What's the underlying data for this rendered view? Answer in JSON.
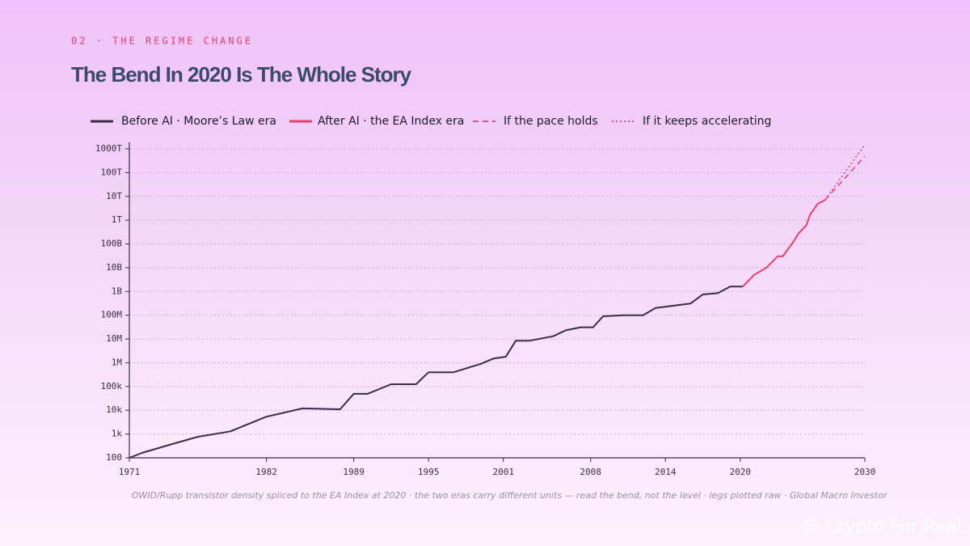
{
  "chart_data": {
    "type": "line",
    "kicker": "02 · THE REGIME CHANGE",
    "title": "The Bend In 2020 Is The Whole Story",
    "note": "OWID/Rupp transistor density spliced to the EA Index at 2020 · the two eras carry different units — read the bend, not the level · legs plotted raw · Global Macro Investor",
    "watermark": "@ Crypto For Real",
    "log_y": true,
    "grid": true,
    "xlim": [
      1971,
      2030
    ],
    "xticks": [
      1971,
      1982,
      1989,
      1995,
      2001,
      2008,
      2014,
      2020,
      2030
    ],
    "ylim": [
      100,
      1000000000000000
    ],
    "yticks": [
      100,
      {
        "value": 1000,
        "label": "1k"
      },
      {
        "value": 10000,
        "label": "10k"
      },
      {
        "value": 100000,
        "label": "100k"
      },
      {
        "value": 1000000,
        "label": "1M"
      },
      {
        "value": 10000000,
        "label": "10M"
      },
      {
        "value": 100000000,
        "label": "100M"
      },
      {
        "value": 1000000000,
        "label": "1B"
      },
      {
        "value": 10000000000,
        "label": "10B"
      },
      {
        "value": 100000000000,
        "label": "100B"
      },
      {
        "value": 1000000000000,
        "label": "1T"
      },
      {
        "value": 10000000000000,
        "label": "10T"
      },
      {
        "value": 100000000000000,
        "label": "100T"
      },
      {
        "value": 1000000000000000,
        "label": "1000T"
      }
    ],
    "series": [
      {
        "name": "Before AI · Moore’s Law era",
        "color": "#3a2d45",
        "style": "solid",
        "x": [
          1971,
          1972,
          1974.2,
          1976.5,
          1979.1,
          1982,
          1984.9,
          1987.9,
          1989,
          1990.1,
          1992,
          1994,
          1995,
          1997,
          1999.2,
          2000.2,
          2001.2,
          2002,
          2003.1,
          2005,
          2006,
          2007.2,
          2008.2,
          2009,
          2010.6,
          2012.2,
          2013.2,
          2016,
          2017,
          2018.2,
          2019.2,
          2020.2
        ],
        "values": [
          100,
          160,
          350,
          770,
          1300,
          5400,
          12000,
          11000,
          49000,
          49000,
          125000,
          125000,
          400000,
          400000,
          900000,
          1500000,
          1800000,
          8500000,
          8500000,
          13000000,
          23000000,
          31000000,
          31000000,
          90000000,
          100000000,
          100000000,
          200000000,
          310000000,
          750000000,
          850000000,
          1600000000,
          1600000000
        ]
      },
      {
        "name": "After AI · the EA Index era",
        "color": "#e8416e",
        "style": "solid",
        "x": [
          2020.2,
          2021.1,
          2022.1,
          2023,
          2023.4,
          2024.2,
          2024.7,
          2025.3,
          2025.6,
          2026.2,
          2026.8
        ],
        "values": [
          1600000000,
          4900000000,
          10000000000,
          30000000000,
          30000000000,
          110000000000,
          290000000000,
          600000000000,
          1700000000000,
          4800000000000,
          7000000000000
        ]
      },
      {
        "name": "If the pace holds",
        "color": "#e8416e",
        "style": "dashed",
        "x": [
          2026.8,
          2030
        ],
        "values": [
          7000000000000,
          490000000000000
        ]
      },
      {
        "name": "If it keeps accelerating",
        "color": "#e8416e",
        "style": "dotted",
        "x": [
          2026.8,
          2030
        ],
        "values": [
          7000000000000,
          1500000000000000
        ]
      }
    ]
  }
}
